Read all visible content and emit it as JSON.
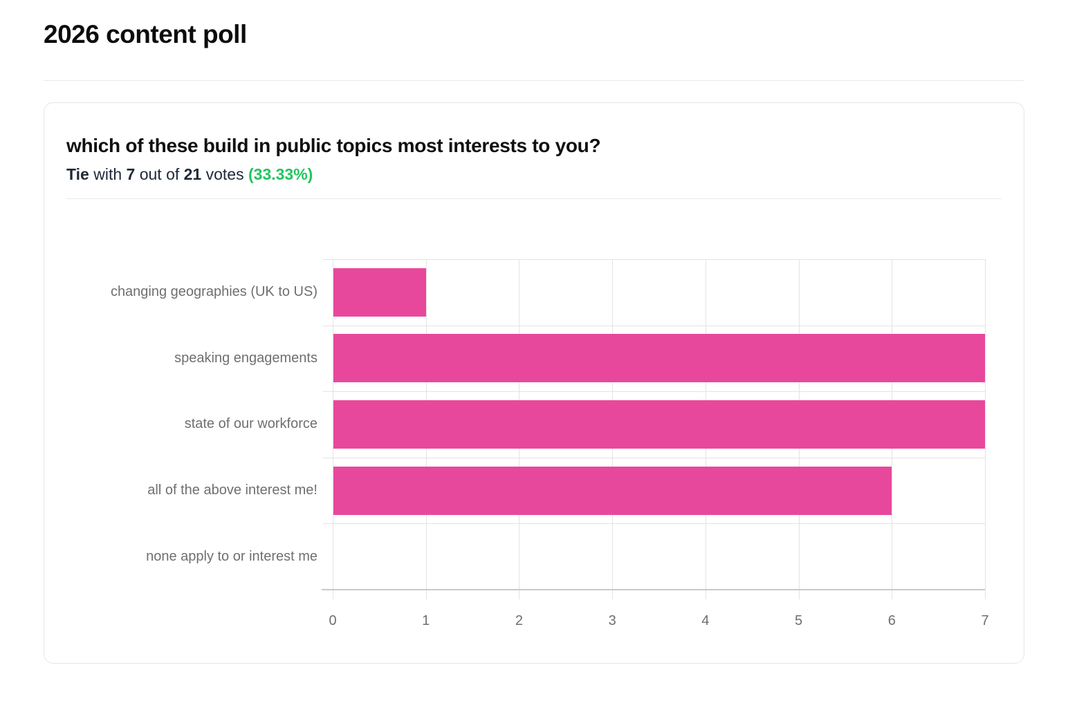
{
  "page": {
    "title": "2026 content poll"
  },
  "poll": {
    "question": "which of these build in public topics most interests to you?",
    "summary": {
      "leader": "Tie",
      "conj1": " with ",
      "votes": "7",
      "conj2": " out of ",
      "total": "21",
      "conj3": " votes ",
      "percent": "(33.33%)"
    },
    "colors": {
      "bar": "#e8489b",
      "percent_text": "#22c55e"
    }
  },
  "chart_data": {
    "type": "bar",
    "orientation": "horizontal",
    "title": "which of these build in public topics most interests to you?",
    "categories": [
      "changing geographies (UK to US)",
      "speaking engagements",
      "state of our workforce",
      "all of the above interest me!",
      "none apply to or interest me"
    ],
    "values": [
      1,
      7,
      7,
      6,
      0
    ],
    "xlabel": "",
    "ylabel": "",
    "xlim": [
      0,
      7
    ],
    "xticks": [
      0,
      1,
      2,
      3,
      4,
      5,
      6,
      7
    ],
    "grid": true,
    "legend": false,
    "bar_color": "#e8489b",
    "total_votes": 21,
    "leading_value": 7,
    "leading_percent": "33.33%"
  }
}
